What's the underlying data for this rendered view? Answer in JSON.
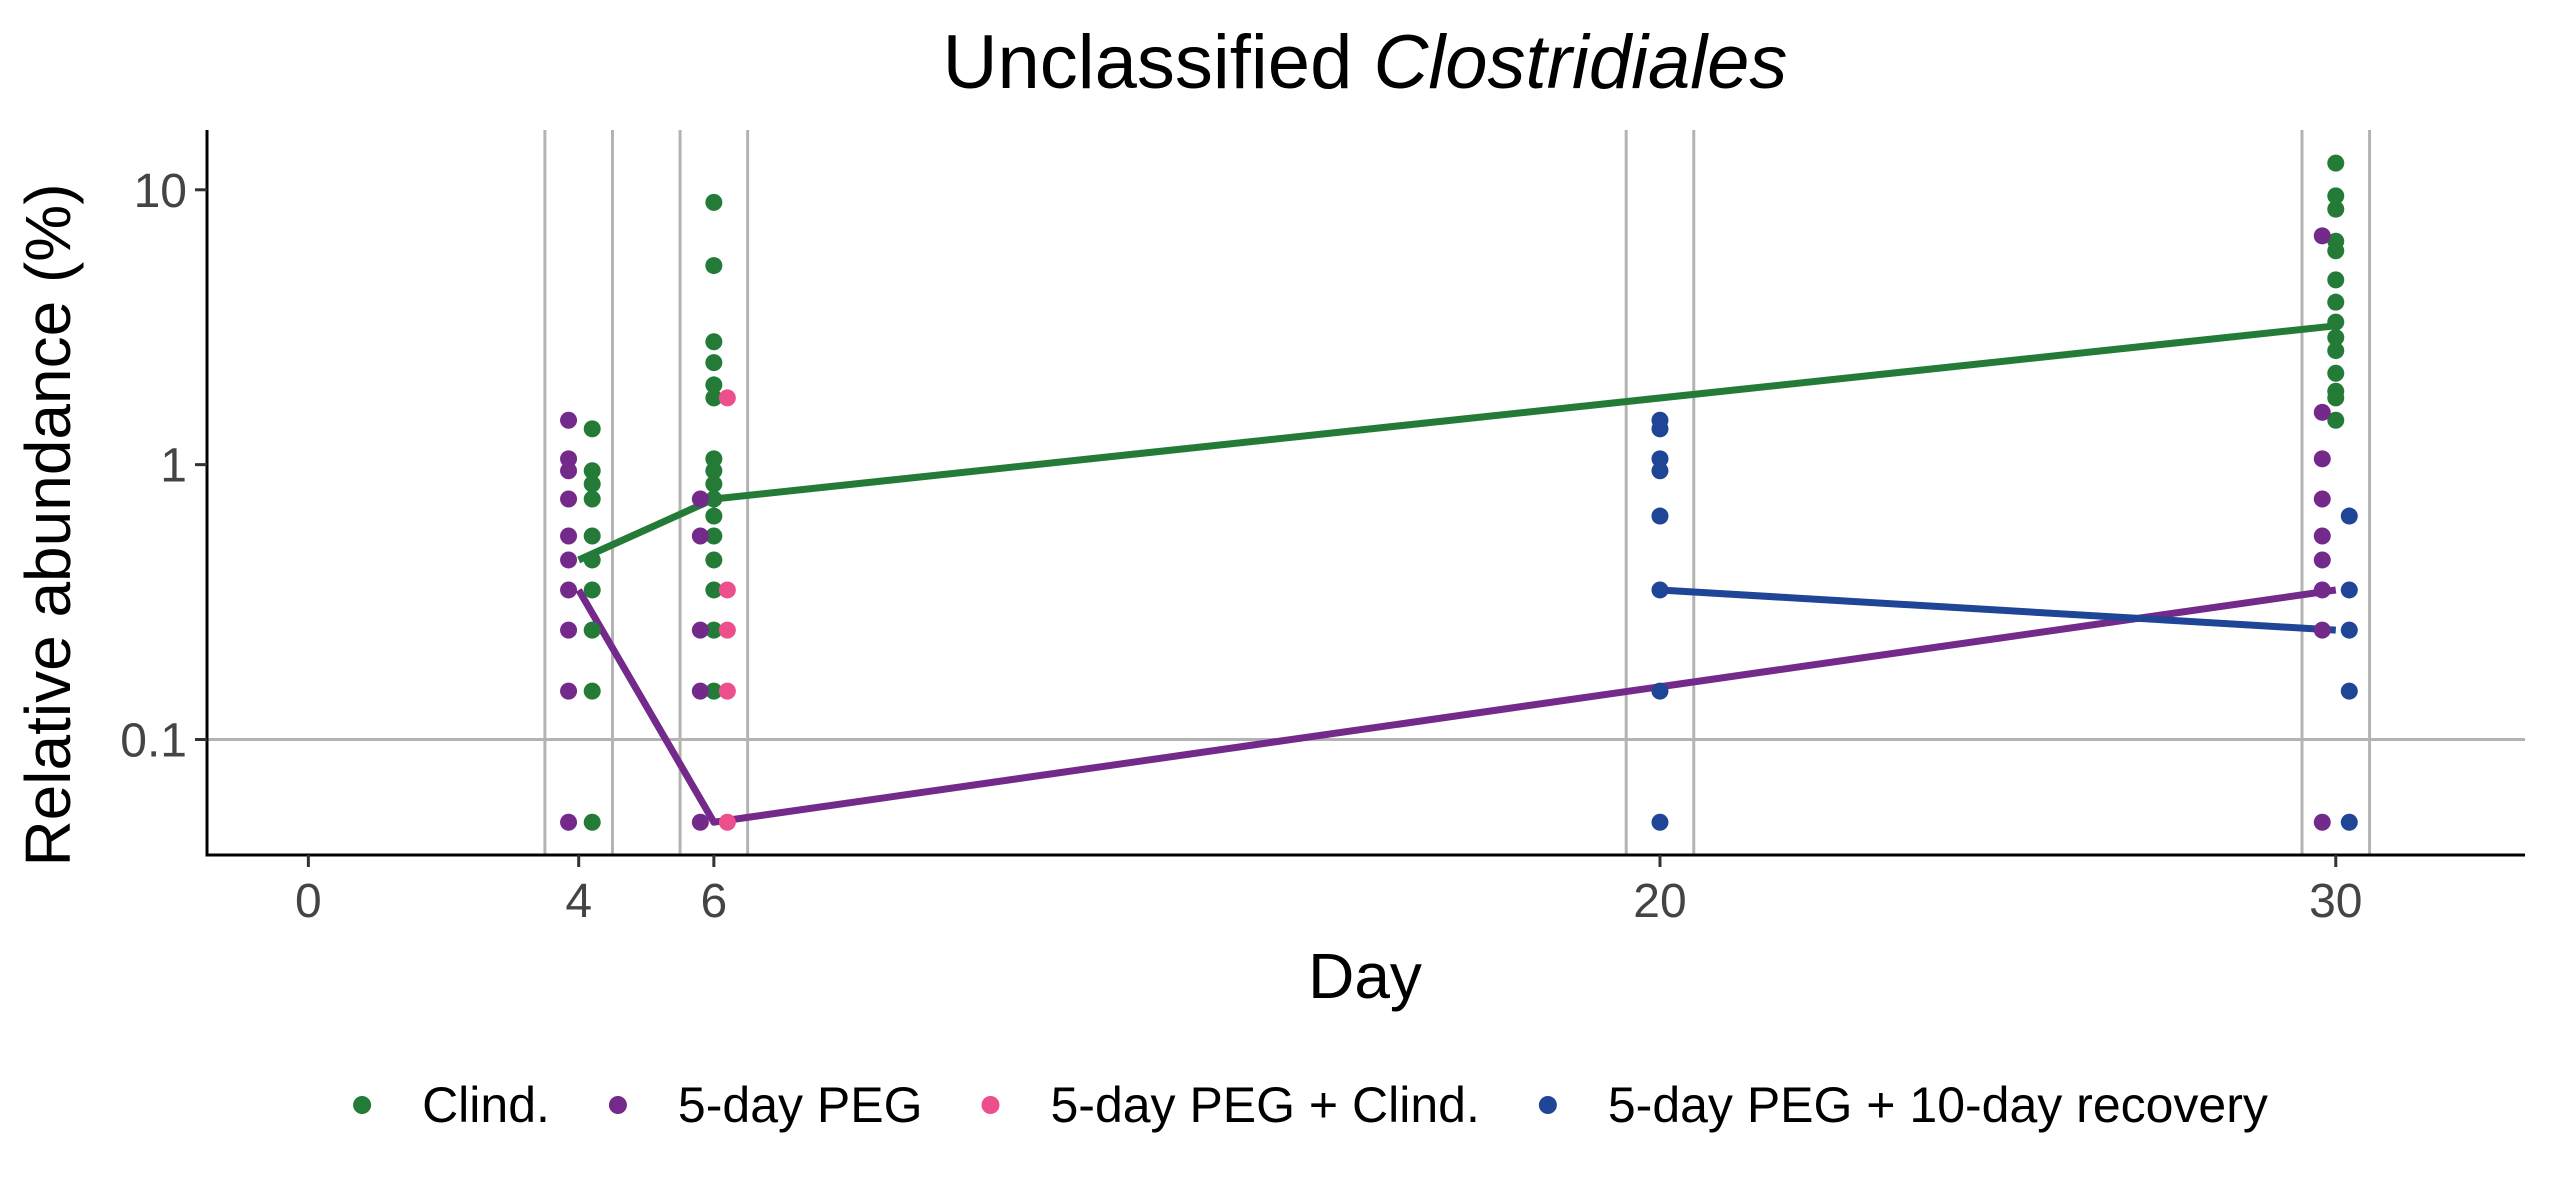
{
  "chart_data": {
    "type": "scatter",
    "title": "Unclassified",
    "title_italic": "Clostridiales",
    "xlabel": "Day",
    "ylabel": "Relative abundance (%)",
    "x_scale": "linear",
    "y_scale": "log",
    "xlim": [
      -1.5,
      32.8
    ],
    "ylim": [
      0.038,
      16.5
    ],
    "x_ticks": [
      0,
      4,
      6,
      20,
      30
    ],
    "x_tick_labels": [
      "0",
      "4",
      "6",
      "20",
      "30"
    ],
    "y_ticks": [
      0.1,
      1,
      10
    ],
    "y_tick_labels": [
      "0.1",
      "1",
      "10"
    ],
    "grid": "vertical lines bracketing each sampling day; horizontal reference line at 0.1",
    "bracket_days": [
      [
        3.5,
        4.5
      ],
      [
        5.5,
        6.5
      ],
      [
        19.5,
        20.5
      ],
      [
        29.5,
        30.5
      ]
    ],
    "hline": 0.1,
    "legend_position": "bottom",
    "series": [
      {
        "name": "Clind.",
        "color": "#237b37",
        "points": [
          [
            4.2,
            1.35
          ],
          [
            4.2,
            0.95
          ],
          [
            4.2,
            0.85
          ],
          [
            4.2,
            0.75
          ],
          [
            4.2,
            0.55
          ],
          [
            4.2,
            0.45
          ],
          [
            4.2,
            0.35
          ],
          [
            4.2,
            0.25
          ],
          [
            4.2,
            0.15
          ],
          [
            4.2,
            0.05
          ],
          [
            6.0,
            9.0
          ],
          [
            6.0,
            5.3
          ],
          [
            6.0,
            2.8
          ],
          [
            6.0,
            2.35
          ],
          [
            6.0,
            1.95
          ],
          [
            6.0,
            1.75
          ],
          [
            6.0,
            1.05
          ],
          [
            6.0,
            0.95
          ],
          [
            6.0,
            0.85
          ],
          [
            6.0,
            0.75
          ],
          [
            6.0,
            0.65
          ],
          [
            6.0,
            0.55
          ],
          [
            6.0,
            0.45
          ],
          [
            6.0,
            0.35
          ],
          [
            6.0,
            0.25
          ],
          [
            6.0,
            0.15
          ],
          [
            30.0,
            12.5
          ],
          [
            30.0,
            9.5
          ],
          [
            30.0,
            8.5
          ],
          [
            30.0,
            6.5
          ],
          [
            30.0,
            6.0
          ],
          [
            30.0,
            4.7
          ],
          [
            30.0,
            3.9
          ],
          [
            30.0,
            3.3
          ],
          [
            30.0,
            2.9
          ],
          [
            30.0,
            2.6
          ],
          [
            30.0,
            2.15
          ],
          [
            30.0,
            1.85
          ],
          [
            30.0,
            1.75
          ],
          [
            30.0,
            1.45
          ]
        ],
        "line": [
          [
            4,
            0.45
          ],
          [
            6,
            0.75
          ],
          [
            30,
            3.2
          ]
        ]
      },
      {
        "name": "5-day PEG",
        "color": "#732a8a",
        "points": [
          [
            3.85,
            1.45
          ],
          [
            3.85,
            1.05
          ],
          [
            3.85,
            0.95
          ],
          [
            3.85,
            0.75
          ],
          [
            3.85,
            0.55
          ],
          [
            3.85,
            0.45
          ],
          [
            3.85,
            0.35
          ],
          [
            3.85,
            0.25
          ],
          [
            3.85,
            0.15
          ],
          [
            3.85,
            0.05
          ],
          [
            5.8,
            0.75
          ],
          [
            5.8,
            0.55
          ],
          [
            5.8,
            0.25
          ],
          [
            5.8,
            0.15
          ],
          [
            5.8,
            0.05
          ],
          [
            29.8,
            6.8
          ],
          [
            29.8,
            1.55
          ],
          [
            29.8,
            1.05
          ],
          [
            29.8,
            0.75
          ],
          [
            29.8,
            0.55
          ],
          [
            29.8,
            0.45
          ],
          [
            29.8,
            0.35
          ],
          [
            29.8,
            0.25
          ],
          [
            29.8,
            0.05
          ]
        ],
        "line": [
          [
            4,
            0.35
          ],
          [
            6,
            0.05
          ],
          [
            30,
            0.35
          ]
        ]
      },
      {
        "name": "5-day PEG + Clind.",
        "color": "#ec4f8c",
        "points": [
          [
            6.2,
            1.75
          ],
          [
            6.2,
            0.35
          ],
          [
            6.2,
            0.25
          ],
          [
            6.2,
            0.15
          ],
          [
            6.2,
            0.05
          ]
        ]
      },
      {
        "name": "5-day PEG + 10-day recovery",
        "color": "#1f4596",
        "points": [
          [
            20.0,
            1.45
          ],
          [
            20.0,
            1.35
          ],
          [
            20.0,
            1.05
          ],
          [
            20.0,
            0.95
          ],
          [
            20.0,
            0.65
          ],
          [
            20.0,
            0.35
          ],
          [
            20.0,
            0.15
          ],
          [
            20.0,
            0.05
          ],
          [
            30.2,
            0.65
          ],
          [
            30.2,
            0.35
          ],
          [
            30.2,
            0.25
          ],
          [
            30.2,
            0.15
          ],
          [
            30.2,
            0.05
          ]
        ],
        "line": [
          [
            20,
            0.35
          ],
          [
            30,
            0.25
          ]
        ]
      }
    ]
  }
}
